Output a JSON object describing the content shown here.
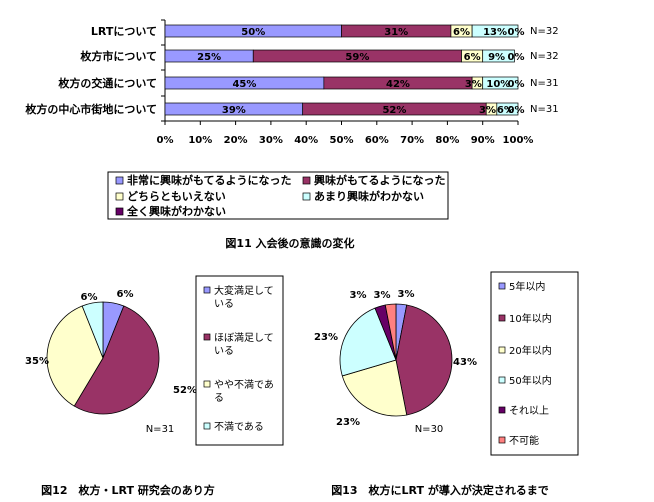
{
  "colors": {
    "s1": "#9999ff",
    "s2": "#993366",
    "s3": "#ffffcc",
    "s4": "#ccffff",
    "s5": "#660066",
    "s6": "#ff8080",
    "axis": "#000000",
    "grid": "#000000"
  },
  "chart_data": [
    {
      "type": "bar",
      "stacked": true,
      "orientation": "horizontal",
      "title": "図11 入会後の意識の変化",
      "categories": [
        "LRTについて",
        "枚方市について",
        "枚方の交通について",
        "枚方の中心市街地について"
      ],
      "n_labels": [
        "N=32",
        "N=32",
        "N=31",
        "N=31"
      ],
      "series": [
        {
          "name": "非常に興味がもてるようになった",
          "values": [
            50,
            25,
            45,
            39
          ],
          "labels": [
            "50%",
            "25%",
            "45%",
            "39%"
          ]
        },
        {
          "name": "興味がもてるようになった",
          "values": [
            31,
            59,
            42,
            52
          ],
          "labels": [
            "31%",
            "59%",
            "42%",
            "52%"
          ]
        },
        {
          "name": "どちらともいえない",
          "values": [
            6,
            6,
            3,
            3
          ],
          "labels": [
            "6%",
            "6%",
            "3%",
            "3%"
          ]
        },
        {
          "name": "あまり興味がわかない",
          "values": [
            13,
            9,
            10,
            6
          ],
          "labels": [
            "13%",
            "9%",
            "10%",
            "6%"
          ]
        },
        {
          "name": "全く興味がわかない",
          "values": [
            0,
            0,
            0,
            0
          ],
          "labels": [
            "0%",
            "0%",
            "0%",
            "0%"
          ]
        }
      ],
      "xlim": [
        0,
        100
      ],
      "xticks": [
        "0%",
        "10%",
        "20%",
        "30%",
        "40%",
        "50%",
        "60%",
        "70%",
        "80%",
        "90%",
        "100%"
      ],
      "legend": "bottom"
    },
    {
      "type": "pie",
      "title": "図12　枚方・LRT 研究会のあり方",
      "n_label": "N=31",
      "slices": [
        {
          "name": "大変満足している",
          "legend_label": "大変満足して\nいる",
          "value": 6,
          "label": "6%"
        },
        {
          "name": "ほぼ満足している",
          "legend_label": "ほぼ満足して\nいる",
          "value": 52,
          "label": "52%"
        },
        {
          "name": "やや不満である",
          "legend_label": "やや不満であ\nる",
          "value": 35,
          "label": "35%"
        },
        {
          "name": "不満である",
          "legend_label": "不満である",
          "value": 6,
          "label": "6%"
        }
      ],
      "legend": "right"
    },
    {
      "type": "pie",
      "title": "図13　枚方にLRT が導入が決定されるまで",
      "n_label": "N=30",
      "slices": [
        {
          "name": "5年以内",
          "value": 3,
          "label": "3%"
        },
        {
          "name": "10年以内",
          "value": 43,
          "label": "43%"
        },
        {
          "name": "20年以内",
          "value": 23,
          "label": "23%"
        },
        {
          "name": "50年以内",
          "value": 23,
          "label": "23%"
        },
        {
          "name": "それ以上",
          "value": 3,
          "label": "3%"
        },
        {
          "name": "不可能",
          "value": 3,
          "label": "3%"
        }
      ],
      "legend": "right"
    }
  ]
}
